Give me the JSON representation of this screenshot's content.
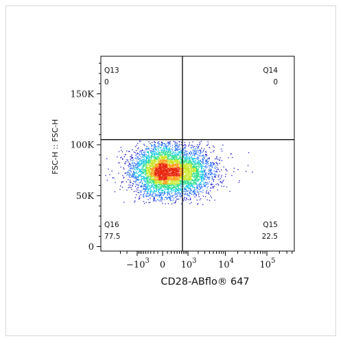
{
  "chart_data": {
    "type": "scatter",
    "subtype": "flow-cytometry-density-dot-plot",
    "xlabel": "CD28-ABflo® 647",
    "ylabel": "FSC-H :: FSC-H",
    "x_scale": "biexponential",
    "x_ticks": [
      {
        "value": -1000,
        "label_base": "−10",
        "label_exp": "3"
      },
      {
        "value": 0,
        "label_base": "0",
        "label_exp": ""
      },
      {
        "value": 1000,
        "label_base": "10",
        "label_exp": "3"
      },
      {
        "value": 10000,
        "label_base": "10",
        "label_exp": "4"
      },
      {
        "value": 100000,
        "label_base": "10",
        "label_exp": "5"
      }
    ],
    "y_scale": "linear",
    "ylim": [
      0,
      185000
    ],
    "y_ticks": [
      {
        "value": 0,
        "label": "0"
      },
      {
        "value": 50000,
        "label": "50K"
      },
      {
        "value": 100000,
        "label": "100K"
      },
      {
        "value": 150000,
        "label": "150K"
      }
    ],
    "gate": {
      "x": 650,
      "y": 105000
    },
    "quadrants": [
      {
        "id": "Q13",
        "value": "0",
        "position": "top-left"
      },
      {
        "id": "Q14",
        "value": "0",
        "position": "top-right"
      },
      {
        "id": "Q15",
        "value": "22.5",
        "position": "bottom-right"
      },
      {
        "id": "Q16",
        "value": "77.5",
        "position": "bottom-left"
      }
    ],
    "populations": [
      {
        "name": "",
        "center_x": 0,
        "center_y": 75000,
        "weight": 0.78
      },
      {
        "name": "",
        "center_x": 1300,
        "center_y": 73000,
        "weight": 0.22
      }
    ],
    "color_scale": [
      "#1010c8",
      "#1e6cff",
      "#15c8e6",
      "#2ee08c",
      "#c8e828",
      "#ffa020",
      "#e82810"
    ],
    "grid": false,
    "legend": "none"
  }
}
